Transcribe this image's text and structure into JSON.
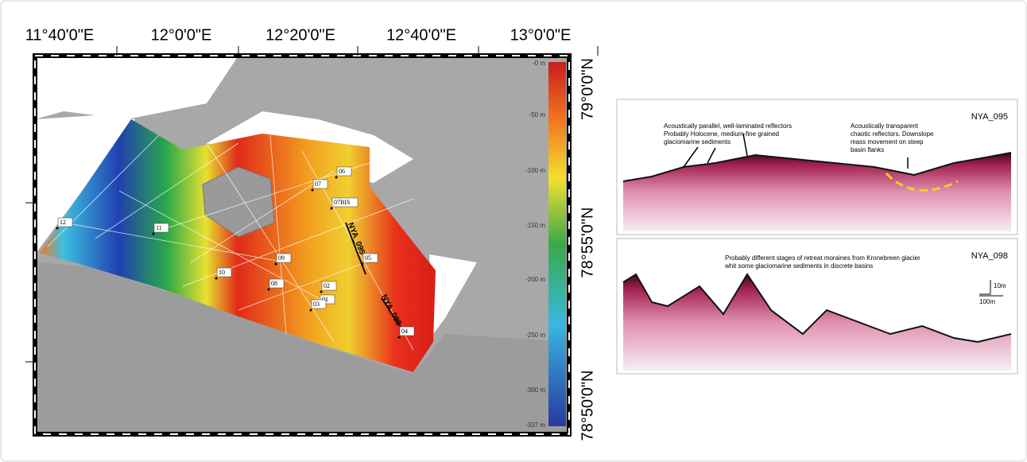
{
  "map": {
    "lon_labels": [
      "11°40'0\"E",
      "12°0'0\"E",
      "12°20'0\"E",
      "12°40'0\"E",
      "13°0'0\"E"
    ],
    "lat_labels": [
      "79°0'0\"N",
      "78°55'0\"N",
      "78°50'0\"N"
    ],
    "colorbar_labels": [
      "-0 m",
      "-50 m",
      "-100 m",
      "-150 m",
      "-200 m",
      "-250 m",
      "-300 m",
      "-337 m"
    ],
    "stations": [
      "12",
      "11",
      "10",
      "09",
      "08",
      "07",
      "06",
      "07BIS",
      "05",
      "02",
      "01",
      "03",
      "04"
    ],
    "profile_labels": [
      "NYA_095",
      "NYA_098"
    ]
  },
  "profiles": [
    {
      "id": "NYA_095",
      "annotations": [
        [
          "Acoustically parallel, well-laminated reflectors",
          "Probably Holocene, medium-fine grained",
          "glaciomarine sediments"
        ],
        [
          "Acoustically transparent",
          "chaotic reflectors. Downslope",
          "mass movement on steep",
          "basin flanks"
        ]
      ]
    },
    {
      "id": "NYA_098",
      "annotations": [
        [
          "Probably different stages of retreat  moraines from Kronebreen glacier",
          "whit some glaciomarine sediments in discrete basins"
        ]
      ],
      "scale_labels": [
        "10m",
        "100m"
      ]
    }
  ]
}
